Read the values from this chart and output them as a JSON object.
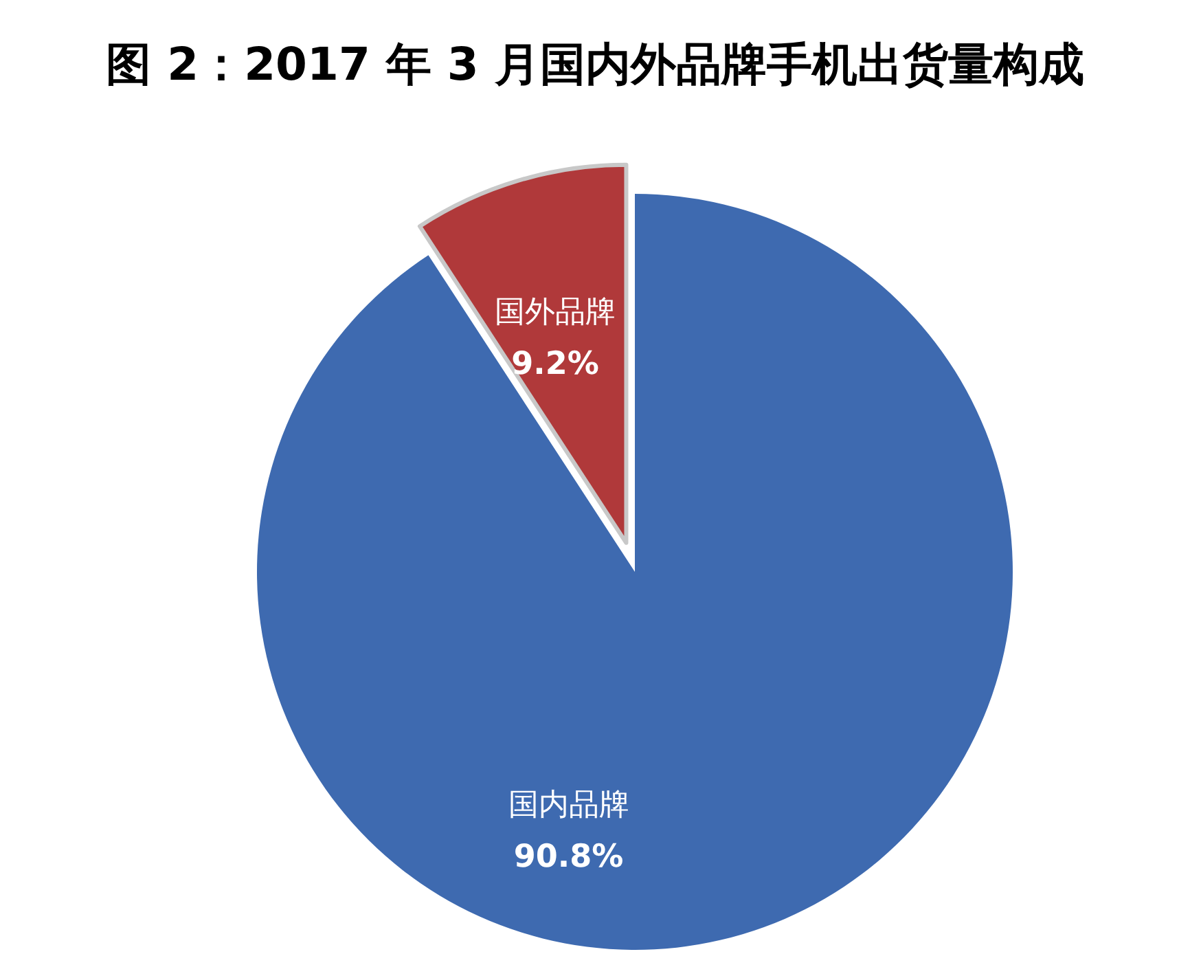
{
  "chart_data": {
    "type": "pie",
    "title": "图 2：2017 年 3 月国内外品牌手机出货量构成",
    "categories": [
      "国内品牌",
      "国外品牌"
    ],
    "values": [
      90.8,
      9.2
    ],
    "colors": [
      "#3e6ab0",
      "#b0393a"
    ],
    "value_labels": [
      "90.8%",
      "9.2%"
    ]
  }
}
